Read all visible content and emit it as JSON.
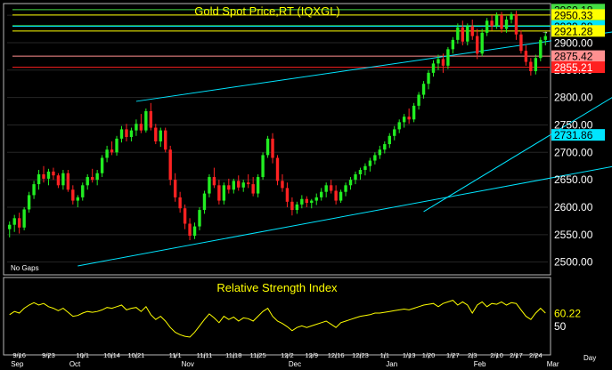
{
  "chart_data": [
    {
      "type": "candlestick",
      "title": "Gold Spot Price,RT  (IQXGL)",
      "note": "No Gaps",
      "ylim": [
        2480,
        2968
      ],
      "yticks": [
        2500,
        2550,
        2600,
        2650,
        2700,
        2750,
        2800,
        2850,
        2900,
        2950
      ],
      "price_levels": [
        {
          "value": 2960.18,
          "label": "2960.18",
          "bg": "#44dd44",
          "fg": "#000000",
          "line": "#44dd44"
        },
        {
          "value": 2950.33,
          "label": "2950.33",
          "bg": "#ffff00",
          "fg": "#000000",
          "line": "#ffff00"
        },
        {
          "value": 2930.83,
          "label": "2930.83",
          "bg": "#44dd44",
          "fg": "#000000",
          "line": "#44dd44"
        },
        {
          "value": 2929.98,
          "label": "2929.98",
          "bg": "#00e5ff",
          "fg": "#000000",
          "line": "#00e5ff"
        },
        {
          "value": 2921.28,
          "label": "2921.28",
          "bg": "#ffff00",
          "fg": "#000000",
          "line": "#ffff00"
        },
        {
          "value": 2900.0,
          "label": "2900.00",
          "bg": "#000000",
          "fg": "#ffffff",
          "line": null
        },
        {
          "value": 2875.42,
          "label": "2875.42",
          "bg": "#ff9090",
          "fg": "#000000",
          "line": "#ff9090"
        },
        {
          "value": 2855.21,
          "label": "2855.21",
          "bg": "#ff2020",
          "fg": "#ffffff",
          "line": "#ff2020"
        },
        {
          "value": 2731.86,
          "label": "2731.86",
          "bg": "#00e5ff",
          "fg": "#000000",
          "line": null
        }
      ],
      "trendlines": [
        {
          "color": "#00e5ff",
          "points": [
            [
              26,
              2793
            ],
            [
              155,
              2960
            ]
          ]
        },
        {
          "color": "#00e5ff",
          "points": [
            [
              14,
              2493
            ],
            [
              160,
              2734
            ]
          ]
        },
        {
          "color": "#00e5ff",
          "points": [
            [
              85,
              2592
            ],
            [
              146,
              2920
            ]
          ]
        }
      ],
      "candles": [
        [
          2560,
          2574,
          2545,
          2568
        ],
        [
          2568,
          2586,
          2555,
          2580
        ],
        [
          2580,
          2590,
          2552,
          2563
        ],
        [
          2563,
          2600,
          2558,
          2596
        ],
        [
          2596,
          2628,
          2590,
          2622
        ],
        [
          2622,
          2648,
          2615,
          2642
        ],
        [
          2642,
          2668,
          2632,
          2660
        ],
        [
          2660,
          2675,
          2645,
          2652
        ],
        [
          2652,
          2670,
          2640,
          2665
        ],
        [
          2665,
          2672,
          2650,
          2658
        ],
        [
          2658,
          2662,
          2635,
          2640
        ],
        [
          2640,
          2668,
          2632,
          2662
        ],
        [
          2662,
          2668,
          2628,
          2632
        ],
        [
          2632,
          2640,
          2605,
          2612
        ],
        [
          2612,
          2622,
          2600,
          2618
        ],
        [
          2618,
          2645,
          2612,
          2640
        ],
        [
          2640,
          2660,
          2632,
          2655
        ],
        [
          2655,
          2670,
          2645,
          2650
        ],
        [
          2650,
          2668,
          2640,
          2662
        ],
        [
          2662,
          2695,
          2655,
          2690
        ],
        [
          2690,
          2712,
          2682,
          2705
        ],
        [
          2705,
          2720,
          2695,
          2700
        ],
        [
          2700,
          2730,
          2694,
          2725
        ],
        [
          2725,
          2748,
          2718,
          2742
        ],
        [
          2742,
          2752,
          2720,
          2728
        ],
        [
          2728,
          2745,
          2720,
          2740
        ],
        [
          2740,
          2760,
          2730,
          2752
        ],
        [
          2752,
          2770,
          2735,
          2740
        ],
        [
          2740,
          2780,
          2736,
          2775
        ],
        [
          2775,
          2790,
          2740,
          2745
        ],
        [
          2745,
          2752,
          2715,
          2720
        ],
        [
          2720,
          2745,
          2710,
          2740
        ],
        [
          2740,
          2745,
          2700,
          2705
        ],
        [
          2705,
          2712,
          2640,
          2650
        ],
        [
          2650,
          2662,
          2610,
          2618
        ],
        [
          2618,
          2628,
          2590,
          2598
        ],
        [
          2598,
          2605,
          2560,
          2570
        ],
        [
          2570,
          2580,
          2540,
          2548
        ],
        [
          2548,
          2572,
          2542,
          2565
        ],
        [
          2565,
          2600,
          2558,
          2595
        ],
        [
          2595,
          2630,
          2588,
          2625
        ],
        [
          2625,
          2660,
          2618,
          2655
        ],
        [
          2655,
          2672,
          2635,
          2640
        ],
        [
          2640,
          2650,
          2605,
          2612
        ],
        [
          2612,
          2645,
          2605,
          2640
        ],
        [
          2640,
          2652,
          2625,
          2632
        ],
        [
          2632,
          2652,
          2625,
          2648
        ],
        [
          2648,
          2658,
          2630,
          2636
        ],
        [
          2636,
          2650,
          2628,
          2645
        ],
        [
          2645,
          2660,
          2635,
          2642
        ],
        [
          2642,
          2655,
          2620,
          2625
        ],
        [
          2625,
          2660,
          2618,
          2655
        ],
        [
          2655,
          2700,
          2650,
          2695
        ],
        [
          2695,
          2730,
          2690,
          2725
        ],
        [
          2725,
          2735,
          2680,
          2690
        ],
        [
          2690,
          2695,
          2640,
          2648
        ],
        [
          2648,
          2660,
          2628,
          2635
        ],
        [
          2635,
          2645,
          2600,
          2610
        ],
        [
          2610,
          2618,
          2585,
          2595
        ],
        [
          2595,
          2610,
          2588,
          2605
        ],
        [
          2605,
          2622,
          2598,
          2615
        ],
        [
          2615,
          2620,
          2600,
          2608
        ],
        [
          2608,
          2615,
          2598,
          2612
        ],
        [
          2612,
          2625,
          2604,
          2618
        ],
        [
          2618,
          2635,
          2612,
          2628
        ],
        [
          2628,
          2645,
          2618,
          2640
        ],
        [
          2640,
          2650,
          2625,
          2630
        ],
        [
          2630,
          2640,
          2605,
          2612
        ],
        [
          2612,
          2632,
          2608,
          2628
        ],
        [
          2628,
          2645,
          2620,
          2640
        ],
        [
          2640,
          2655,
          2632,
          2650
        ],
        [
          2650,
          2665,
          2642,
          2660
        ],
        [
          2660,
          2672,
          2650,
          2668
        ],
        [
          2668,
          2680,
          2658,
          2675
        ],
        [
          2675,
          2690,
          2665,
          2685
        ],
        [
          2685,
          2700,
          2678,
          2695
        ],
        [
          2695,
          2712,
          2688,
          2705
        ],
        [
          2705,
          2720,
          2698,
          2715
        ],
        [
          2715,
          2735,
          2708,
          2730
        ],
        [
          2730,
          2748,
          2722,
          2742
        ],
        [
          2742,
          2760,
          2735,
          2755
        ],
        [
          2755,
          2770,
          2745,
          2765
        ],
        [
          2765,
          2780,
          2752,
          2760
        ],
        [
          2760,
          2790,
          2755,
          2785
        ],
        [
          2785,
          2810,
          2778,
          2805
        ],
        [
          2805,
          2830,
          2798,
          2825
        ],
        [
          2825,
          2850,
          2815,
          2845
        ],
        [
          2845,
          2868,
          2838,
          2862
        ],
        [
          2862,
          2878,
          2850,
          2870
        ],
        [
          2870,
          2880,
          2845,
          2858
        ],
        [
          2858,
          2892,
          2852,
          2888
        ],
        [
          2888,
          2910,
          2880,
          2905
        ],
        [
          2905,
          2935,
          2898,
          2928
        ],
        [
          2928,
          2940,
          2895,
          2902
        ],
        [
          2902,
          2935,
          2895,
          2930
        ],
        [
          2930,
          2942,
          2905,
          2912
        ],
        [
          2912,
          2925,
          2870,
          2880
        ],
        [
          2880,
          2925,
          2875,
          2918
        ],
        [
          2918,
          2945,
          2912,
          2940
        ],
        [
          2940,
          2950,
          2922,
          2930
        ],
        [
          2930,
          2955,
          2925,
          2950
        ],
        [
          2950,
          2956,
          2918,
          2925
        ],
        [
          2925,
          2948,
          2918,
          2942
        ],
        [
          2942,
          2956,
          2935,
          2952
        ],
        [
          2952,
          2958,
          2905,
          2915
        ],
        [
          2915,
          2922,
          2880,
          2885
        ],
        [
          2885,
          2895,
          2858,
          2865
        ],
        [
          2865,
          2872,
          2840,
          2848
        ],
        [
          2848,
          2878,
          2842,
          2872
        ],
        [
          2872,
          2910,
          2866,
          2905
        ],
        [
          2905,
          2920,
          2895,
          2912
        ]
      ],
      "x_ticks": [
        {
          "i": 2,
          "label": "9/16"
        },
        {
          "i": 8,
          "label": "9/23"
        },
        {
          "i": 15,
          "label": "10/1"
        },
        {
          "i": 21,
          "label": "10/14"
        },
        {
          "i": 26,
          "label": "10/21"
        },
        {
          "i": 34,
          "label": "11/1"
        },
        {
          "i": 40,
          "label": "11/11"
        },
        {
          "i": 46,
          "label": "11/18"
        },
        {
          "i": 51,
          "label": "11/25"
        },
        {
          "i": 57,
          "label": "12/2"
        },
        {
          "i": 62,
          "label": "12/9"
        },
        {
          "i": 67,
          "label": "12/16"
        },
        {
          "i": 72,
          "label": "12/23"
        },
        {
          "i": 77,
          "label": "1/1"
        },
        {
          "i": 82,
          "label": "1/13"
        },
        {
          "i": 86,
          "label": "1/20"
        },
        {
          "i": 91,
          "label": "1/27"
        },
        {
          "i": 95,
          "label": "2/3"
        },
        {
          "i": 100,
          "label": "2/10"
        },
        {
          "i": 104,
          "label": "2/17"
        },
        {
          "i": 108,
          "label": "2/24"
        }
      ],
      "month_ticks": [
        {
          "i": 1,
          "label": "Sep"
        },
        {
          "i": 13,
          "label": "Oct"
        },
        {
          "i": 36,
          "label": "Nov"
        },
        {
          "i": 58,
          "label": "Dec"
        },
        {
          "i": 78,
          "label": "Jan"
        },
        {
          "i": 96,
          "label": "Feb"
        },
        {
          "i": 111,
          "label": "Mar"
        }
      ],
      "period": "Day"
    },
    {
      "type": "line",
      "title": "Relative Strength Index",
      "ylim": [
        10,
        100
      ],
      "ytick_label": "50",
      "ytick_value": 50,
      "last_value": 60.22,
      "last_label": "60.22",
      "color": "#ffff00",
      "values": [
        58,
        62,
        60,
        66,
        70,
        73,
        70,
        72,
        68,
        66,
        63,
        66,
        61,
        56,
        57,
        60,
        62,
        61,
        62,
        64,
        67,
        66,
        68,
        70,
        64,
        66,
        67,
        62,
        68,
        58,
        52,
        56,
        50,
        42,
        36,
        33,
        31,
        30,
        36,
        44,
        52,
        59,
        54,
        48,
        56,
        52,
        55,
        50,
        54,
        53,
        50,
        56,
        62,
        66,
        56,
        50,
        47,
        43,
        38,
        42,
        44,
        42,
        44,
        46,
        48,
        50,
        46,
        42,
        48,
        50,
        52,
        54,
        56,
        57,
        58,
        60,
        60,
        61,
        62,
        63,
        64,
        65,
        64,
        66,
        68,
        70,
        71,
        72,
        68,
        72,
        74,
        76,
        70,
        74,
        70,
        60,
        70,
        74,
        68,
        72,
        71,
        74,
        70,
        73,
        72,
        64,
        56,
        52,
        60,
        66,
        60
      ]
    }
  ]
}
